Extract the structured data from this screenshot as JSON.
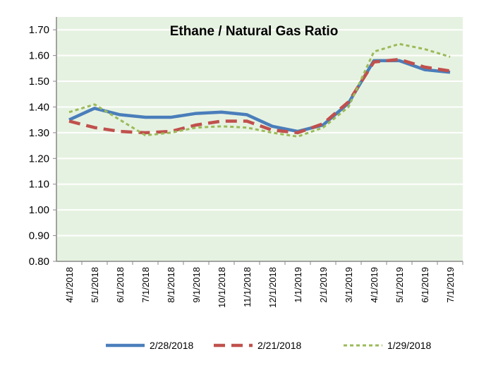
{
  "chart_data": {
    "type": "line",
    "title": "Ethane / Natural Gas Ratio",
    "xlabel": "",
    "ylabel": "",
    "ylim": [
      0.8,
      1.7
    ],
    "yticks": [
      "0.80",
      "0.90",
      "1.00",
      "1.10",
      "1.20",
      "1.30",
      "1.40",
      "1.50",
      "1.60",
      "1.70"
    ],
    "grid": true,
    "legend_position": "bottom",
    "categories": [
      "4/1/2018",
      "5/1/2018",
      "6/1/2018",
      "7/1/2018",
      "8/1/2018",
      "9/1/2018",
      "10/1/2018",
      "11/1/2018",
      "12/1/2018",
      "1/1/2019",
      "2/1/2019",
      "3/1/2019",
      "4/1/2019",
      "5/1/2019",
      "6/1/2019",
      "7/1/2019"
    ],
    "series": [
      {
        "name": "2/28/2018",
        "color": "#4a7ebb",
        "style": "solid",
        "values": [
          1.35,
          1.395,
          1.37,
          1.36,
          1.36,
          1.375,
          1.38,
          1.37,
          1.325,
          1.305,
          1.33,
          1.415,
          1.58,
          1.58,
          1.545,
          1.535
        ]
      },
      {
        "name": "2/21/2018",
        "color": "#c0504d",
        "style": "dashed",
        "values": [
          1.345,
          1.32,
          1.305,
          1.3,
          1.305,
          1.33,
          1.345,
          1.345,
          1.31,
          1.3,
          1.335,
          1.42,
          1.575,
          1.585,
          1.555,
          1.54
        ]
      },
      {
        "name": "1/29/2018",
        "color": "#9bbb59",
        "style": "dotted",
        "values": [
          1.38,
          1.41,
          1.35,
          1.29,
          1.3,
          1.32,
          1.325,
          1.32,
          1.3,
          1.285,
          1.32,
          1.4,
          1.615,
          1.645,
          1.625,
          1.595
        ]
      }
    ],
    "plot_background": "#e6f2e1"
  }
}
